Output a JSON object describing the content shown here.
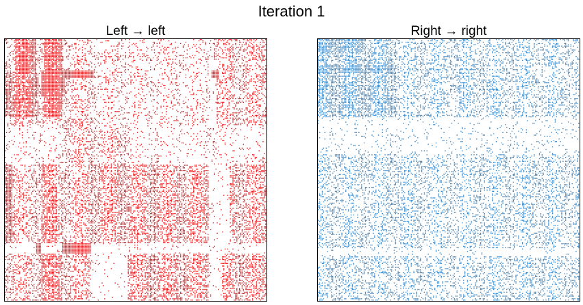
{
  "figure": {
    "title": "Iteration 1"
  },
  "chart_data": [
    {
      "type": "heatmap",
      "subtype": "adjacency-matrix-spy-plot",
      "title": "Left → left",
      "color": "#e41a1c",
      "xlabel": "",
      "ylabel": "",
      "xticks": [],
      "yticks": [],
      "grid": false,
      "matrix_size": 100,
      "blocks": [
        {
          "rows": [
            0,
            33
          ],
          "cols": [
            0,
            33
          ],
          "density": 0.25
        },
        {
          "rows": [
            0,
            33
          ],
          "cols": [
            33,
            78
          ],
          "density": 0.16
        },
        {
          "rows": [
            0,
            33
          ],
          "cols": [
            81,
            100
          ],
          "density": 0.3
        },
        {
          "rows": [
            0,
            8
          ],
          "cols": [
            80,
            100
          ],
          "density": 0.35
        },
        {
          "rows": [
            0,
            30
          ],
          "cols": [
            4,
            12
          ],
          "density": 0.85
        },
        {
          "rows": [
            0,
            30
          ],
          "cols": [
            15,
            22
          ],
          "density": 0.8
        },
        {
          "rows": [
            13,
            30
          ],
          "cols": [
            0,
            13
          ],
          "density": 0.7
        },
        {
          "rows": [
            12,
            22
          ],
          "cols": [
            14,
            23
          ],
          "density": 0.95
        },
        {
          "rows": [
            12,
            15
          ],
          "cols": [
            22,
            34
          ],
          "density": 1.0
        },
        {
          "rows": [
            12,
            15
          ],
          "cols": [
            79,
            82
          ],
          "density": 1.0
        },
        {
          "rows": [
            33,
            48
          ],
          "cols": [
            0,
            100
          ],
          "density": 0.1
        },
        {
          "rows": [
            33,
            60
          ],
          "cols": [
            22,
            48
          ],
          "density": 0.3
        },
        {
          "rows": [
            48,
            78
          ],
          "cols": [
            0,
            33
          ],
          "density": 0.32
        },
        {
          "rows": [
            48,
            78
          ],
          "cols": [
            0,
            3
          ],
          "density": 0.8
        },
        {
          "rows": [
            48,
            78
          ],
          "cols": [
            14,
            20
          ],
          "density": 0.6
        },
        {
          "rows": [
            48,
            78
          ],
          "cols": [
            33,
            78
          ],
          "density": 0.45
        },
        {
          "rows": [
            48,
            78
          ],
          "cols": [
            86,
            100
          ],
          "density": 0.4
        },
        {
          "rows": [
            78,
            82
          ],
          "cols": [
            0,
            100
          ],
          "density": 0.05
        },
        {
          "rows": [
            78,
            82
          ],
          "cols": [
            12,
            14
          ],
          "density": 1.0
        },
        {
          "rows": [
            78,
            82
          ],
          "cols": [
            22,
            33
          ],
          "density": 1.0
        },
        {
          "rows": [
            82,
            100
          ],
          "cols": [
            0,
            33
          ],
          "density": 0.35
        },
        {
          "rows": [
            82,
            100
          ],
          "cols": [
            14,
            22
          ],
          "density": 0.65
        },
        {
          "rows": [
            82,
            100
          ],
          "cols": [
            47,
            78
          ],
          "density": 0.45
        },
        {
          "rows": [
            82,
            100
          ],
          "cols": [
            83,
            100
          ],
          "density": 0.45
        }
      ],
      "background_density": 0.04
    },
    {
      "type": "heatmap",
      "subtype": "adjacency-matrix-spy-plot",
      "title": "Right → right",
      "color": "#3a86c4",
      "xlabel": "",
      "ylabel": "",
      "xticks": [],
      "yticks": [],
      "grid": false,
      "matrix_size": 100,
      "blocks": [
        {
          "rows": [
            0,
            30
          ],
          "cols": [
            0,
            100
          ],
          "density": 0.3
        },
        {
          "rows": [
            0,
            30
          ],
          "cols": [
            0,
            30
          ],
          "density": 0.5
        },
        {
          "rows": [
            0,
            5
          ],
          "cols": [
            0,
            18
          ],
          "density": 0.75
        },
        {
          "rows": [
            10,
            13
          ],
          "cols": [
            0,
            30
          ],
          "density": 0.8
        },
        {
          "rows": [
            20,
            30
          ],
          "cols": [
            0,
            30
          ],
          "density": 0.55
        },
        {
          "rows": [
            30,
            44
          ],
          "cols": [
            0,
            100
          ],
          "density": 0.08
        },
        {
          "rows": [
            44,
            100
          ],
          "cols": [
            0,
            100
          ],
          "density": 0.25
        },
        {
          "rows": [
            44,
            100
          ],
          "cols": [
            0,
            14
          ],
          "density": 0.3
        },
        {
          "rows": [
            44,
            100
          ],
          "cols": [
            14,
            40
          ],
          "density": 0.3
        },
        {
          "rows": [
            44,
            100
          ],
          "cols": [
            60,
            100
          ],
          "density": 0.3
        },
        {
          "rows": [
            80,
            83
          ],
          "cols": [
            0,
            100
          ],
          "density": 0.05
        }
      ],
      "background_density": 0.12
    }
  ]
}
